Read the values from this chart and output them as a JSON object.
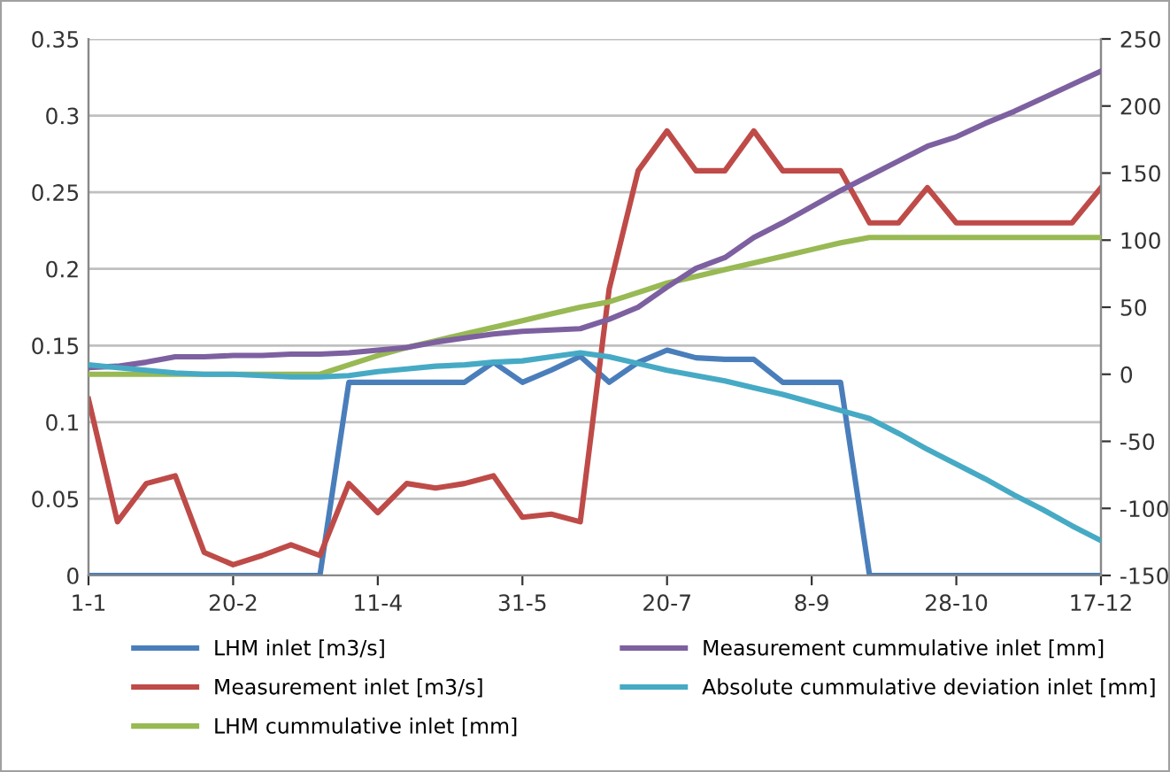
{
  "chart_data": {
    "type": "line",
    "categories": [
      "1-1",
      null,
      null,
      null,
      null,
      "20-2",
      null,
      null,
      null,
      null,
      "11-4",
      null,
      null,
      null,
      null,
      "31-5",
      null,
      null,
      null,
      null,
      "20-7",
      null,
      null,
      null,
      null,
      "8-9",
      null,
      null,
      null,
      null,
      "28-10",
      null,
      null,
      null,
      null,
      "17-12"
    ],
    "series": [
      {
        "name": "LHM inlet [m3/s]",
        "color": "#4a7ebb",
        "values": [
          0,
          0,
          0,
          0,
          0,
          0,
          0,
          0,
          0,
          0.126,
          0.126,
          0.126,
          0.126,
          0.126,
          0.139,
          0.126,
          0.134,
          0.143,
          0.126,
          0.139,
          0.147,
          0.142,
          0.141,
          0.141,
          0.126,
          0.126,
          0.126,
          0,
          0,
          0,
          0,
          0,
          0,
          0,
          0,
          0
        ]
      },
      {
        "name": "Measurement inlet [m3/s]",
        "color": "#be4b48",
        "values": [
          0.115,
          0.035,
          0.06,
          0.065,
          0.015,
          0.007,
          0.013,
          0.02,
          0.013,
          0.06,
          0.041,
          0.06,
          0.057,
          0.06,
          0.065,
          0.038,
          0.04,
          0.035,
          0.187,
          0.264,
          0.29,
          0.264,
          0.264,
          0.29,
          0.264,
          0.264,
          0.264,
          0.23,
          0.23,
          0.253,
          0.23,
          0.23,
          0.23,
          0.23,
          0.23,
          0.253
        ]
      },
      {
        "name": "LHM cummulative inlet [mm]",
        "color": "#98b954",
        "axis": "y2",
        "values": [
          0,
          0,
          0,
          0,
          0,
          0,
          0,
          0,
          0,
          7,
          14,
          20,
          25,
          30,
          35,
          40,
          45,
          50,
          54,
          61,
          68,
          73,
          78,
          83,
          88,
          93,
          98,
          102,
          102,
          102,
          102,
          102,
          102,
          102,
          102,
          102
        ]
      },
      {
        "name": "Measurement cummulative inlet [mm]",
        "color": "#7d60a0",
        "axis": "y2",
        "values": [
          5,
          6,
          9,
          13,
          13,
          14,
          14,
          15,
          15,
          16,
          18,
          20,
          24,
          27,
          30,
          32,
          33,
          34,
          41,
          50,
          65,
          79,
          87,
          102,
          113,
          125,
          137,
          148,
          159,
          170,
          177,
          187,
          196,
          206,
          216,
          226
        ]
      },
      {
        "name": "Absolute cummulative deviation inlet [mm]",
        "color": "#46aac5",
        "axis": "y2",
        "values": [
          7,
          5,
          3,
          1,
          0,
          0,
          -1,
          -2,
          -2,
          -1,
          2,
          4,
          6,
          7,
          9,
          10,
          13,
          16,
          13,
          8,
          3,
          -1,
          -5,
          -10,
          -15,
          -21,
          -27,
          -33,
          -44,
          -56,
          -67,
          -78,
          -90,
          -101,
          -113,
          -124
        ]
      }
    ],
    "ylim": [
      0,
      0.35
    ],
    "yticks": [
      0,
      0.05,
      0.1,
      0.15,
      0.2,
      0.25,
      0.3,
      0.35
    ],
    "y2lim": [
      -150,
      250
    ],
    "y2ticks": [
      -150,
      -100,
      -50,
      0,
      50,
      100,
      150,
      200,
      250
    ],
    "grid": "y",
    "legend": "bottom",
    "marker": "none",
    "line_style": "solid"
  }
}
